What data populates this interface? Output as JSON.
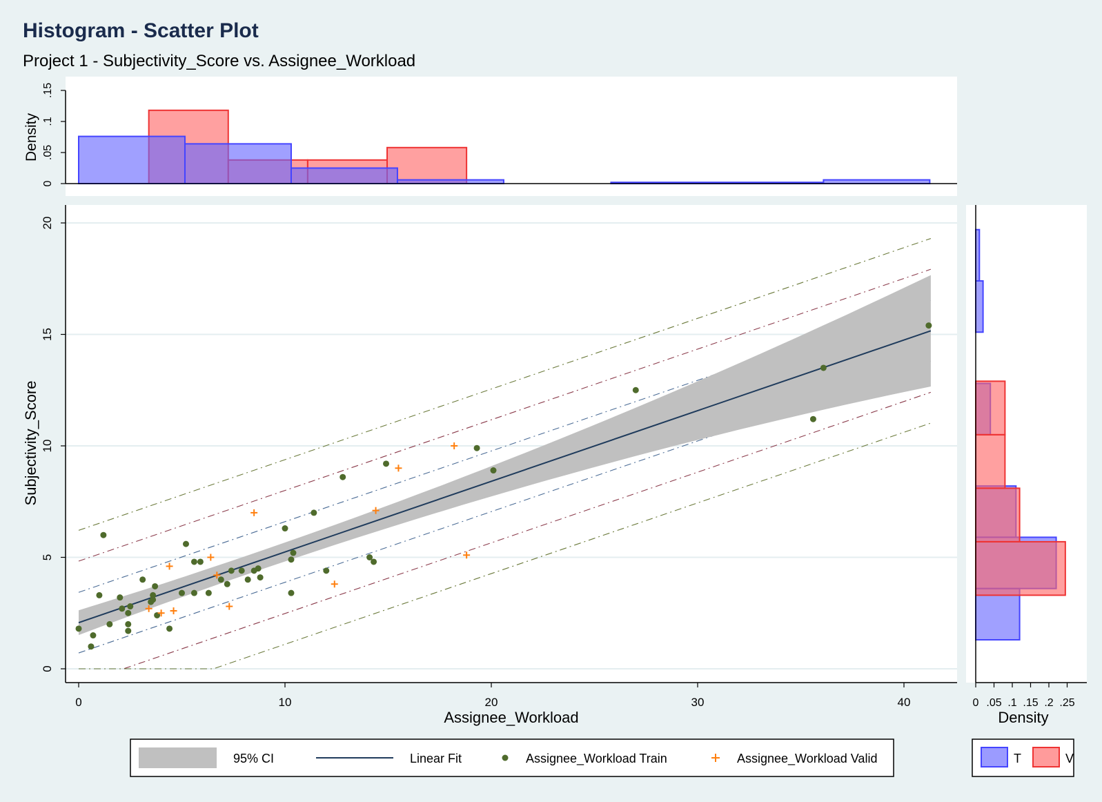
{
  "title": "Histogram - Scatter Plot",
  "subtitle": "Project 1 - Subjectivity_Score vs. Assignee_Workload",
  "chart_data": [
    {
      "type": "histogram",
      "panel": "top",
      "ylabel": "Density",
      "ylim": [
        0,
        0.15
      ],
      "yticks": [
        0,
        0.05,
        0.1,
        0.15
      ],
      "ytick_labels": [
        "0",
        ".05",
        ".1",
        ".15"
      ],
      "series": [
        {
          "name": "T",
          "color": "#6666ff",
          "bins": [
            [
              0,
              5.15,
              0.076
            ],
            [
              5.15,
              10.3,
              0.064
            ],
            [
              10.3,
              15.45,
              0.025
            ],
            [
              15.45,
              20.6,
              0.006
            ],
            [
              25.8,
              36.1,
              0.002
            ],
            [
              36.1,
              41.25,
              0.006
            ]
          ]
        },
        {
          "name": "V",
          "color": "#ff6666",
          "bins": [
            [
              3.4,
              7.25,
              0.118
            ],
            [
              7.25,
              11.1,
              0.038
            ],
            [
              11.1,
              14.95,
              0.038
            ],
            [
              14.95,
              18.8,
              0.058
            ]
          ]
        }
      ]
    },
    {
      "type": "scatter",
      "panel": "main",
      "xlabel": "Assignee_Workload",
      "ylabel": "Subjectivity_Score",
      "xlim": [
        0,
        41.3
      ],
      "ylim": [
        0,
        20
      ],
      "xticks": [
        0,
        10,
        20,
        30,
        40
      ],
      "yticks": [
        0,
        5,
        10,
        15,
        20
      ],
      "grid": true,
      "series": [
        {
          "name": "Assignee_Workload Train",
          "marker": "circle",
          "color": "#4f6b2c",
          "points": [
            [
              0,
              1.8
            ],
            [
              0.6,
              1.0
            ],
            [
              0.7,
              1.5
            ],
            [
              1.0,
              3.3
            ],
            [
              1.2,
              6.0
            ],
            [
              1.5,
              2.0
            ],
            [
              2.0,
              3.2
            ],
            [
              2.1,
              2.7
            ],
            [
              2.4,
              2.0
            ],
            [
              2.4,
              1.7
            ],
            [
              2.4,
              2.5
            ],
            [
              2.5,
              2.8
            ],
            [
              3.1,
              4.0
            ],
            [
              3.5,
              3.0
            ],
            [
              3.6,
              3.1
            ],
            [
              3.6,
              3.3
            ],
            [
              3.7,
              3.7
            ],
            [
              3.8,
              2.4
            ],
            [
              4.4,
              1.8
            ],
            [
              5.0,
              3.4
            ],
            [
              5.2,
              5.6
            ],
            [
              5.6,
              4.8
            ],
            [
              5.6,
              3.4
            ],
            [
              5.9,
              4.8
            ],
            [
              6.3,
              3.4
            ],
            [
              6.9,
              4.0
            ],
            [
              7.2,
              3.8
            ],
            [
              7.4,
              4.4
            ],
            [
              7.9,
              4.4
            ],
            [
              8.2,
              4.0
            ],
            [
              8.5,
              4.4
            ],
            [
              8.7,
              4.5
            ],
            [
              8.8,
              4.1
            ],
            [
              10.0,
              6.3
            ],
            [
              10.3,
              4.9
            ],
            [
              10.3,
              3.4
            ],
            [
              10.4,
              5.2
            ],
            [
              11.4,
              7.0
            ],
            [
              12.0,
              4.4
            ],
            [
              12.8,
              8.6
            ],
            [
              14.1,
              5.0
            ],
            [
              14.3,
              4.8
            ],
            [
              14.9,
              9.2
            ],
            [
              19.3,
              9.9
            ],
            [
              20.1,
              8.9
            ],
            [
              27.0,
              12.5
            ],
            [
              35.6,
              11.2
            ],
            [
              36.1,
              13.5
            ],
            [
              41.2,
              15.4
            ]
          ]
        },
        {
          "name": "Assignee_Workload Valid",
          "marker": "plus",
          "color": "#ff7f0e",
          "points": [
            [
              3.4,
              2.7
            ],
            [
              4.0,
              2.5
            ],
            [
              4.4,
              4.6
            ],
            [
              4.6,
              2.6
            ],
            [
              6.4,
              5.0
            ],
            [
              6.7,
              4.2
            ],
            [
              7.3,
              2.8
            ],
            [
              8.5,
              7.0
            ],
            [
              12.4,
              3.8
            ],
            [
              14.4,
              7.1
            ],
            [
              15.5,
              9.0
            ],
            [
              18.2,
              10.0
            ],
            [
              18.8,
              5.1
            ]
          ]
        }
      ],
      "linear_fit": {
        "name": "Linear Fit",
        "intercept": 2.07,
        "slope": 0.317,
        "color": "#1f3b5c"
      },
      "ci": {
        "name": "95% CI",
        "color": "#c0c0c0"
      },
      "bands": [
        {
          "offset": 1.36,
          "color": "#4a6b95"
        },
        {
          "offset": 2.76,
          "color": "#8b3b4b"
        },
        {
          "offset": 4.14,
          "color": "#6b7a3b"
        }
      ]
    },
    {
      "type": "histogram",
      "panel": "right",
      "orientation": "horizontal",
      "xlabel": "Density",
      "xlim": [
        0,
        0.25
      ],
      "xticks": [
        0,
        0.05,
        0.1,
        0.15,
        0.2,
        0.25
      ],
      "xtick_labels": [
        "0",
        ".05",
        ".1",
        ".15",
        ".2",
        ".25"
      ],
      "series": [
        {
          "name": "T",
          "color": "#6666ff",
          "bins": [
            [
              1.3,
              3.6,
              0.12
            ],
            [
              3.6,
              5.9,
              0.22
            ],
            [
              5.9,
              8.2,
              0.11
            ],
            [
              10.5,
              12.8,
              0.04
            ],
            [
              15.1,
              17.4,
              0.02
            ],
            [
              17.4,
              19.7,
              0.01
            ]
          ]
        },
        {
          "name": "V",
          "color": "#ff6666",
          "bins": [
            [
              3.3,
              5.7,
              0.245
            ],
            [
              5.7,
              8.1,
              0.12
            ],
            [
              8.1,
              10.5,
              0.08
            ],
            [
              10.5,
              12.9,
              0.08
            ]
          ]
        }
      ]
    }
  ],
  "legend_main": {
    "items": [
      {
        "label": "95% CI",
        "kind": "ci"
      },
      {
        "label": "Linear Fit",
        "kind": "line"
      },
      {
        "label": "Assignee_Workload Train",
        "kind": "circle"
      },
      {
        "label": "Assignee_Workload Valid",
        "kind": "plus"
      }
    ]
  },
  "legend_hist": {
    "items": [
      {
        "label": "T",
        "color": "#6666ff"
      },
      {
        "label": "V",
        "color": "#ff6666"
      }
    ]
  }
}
